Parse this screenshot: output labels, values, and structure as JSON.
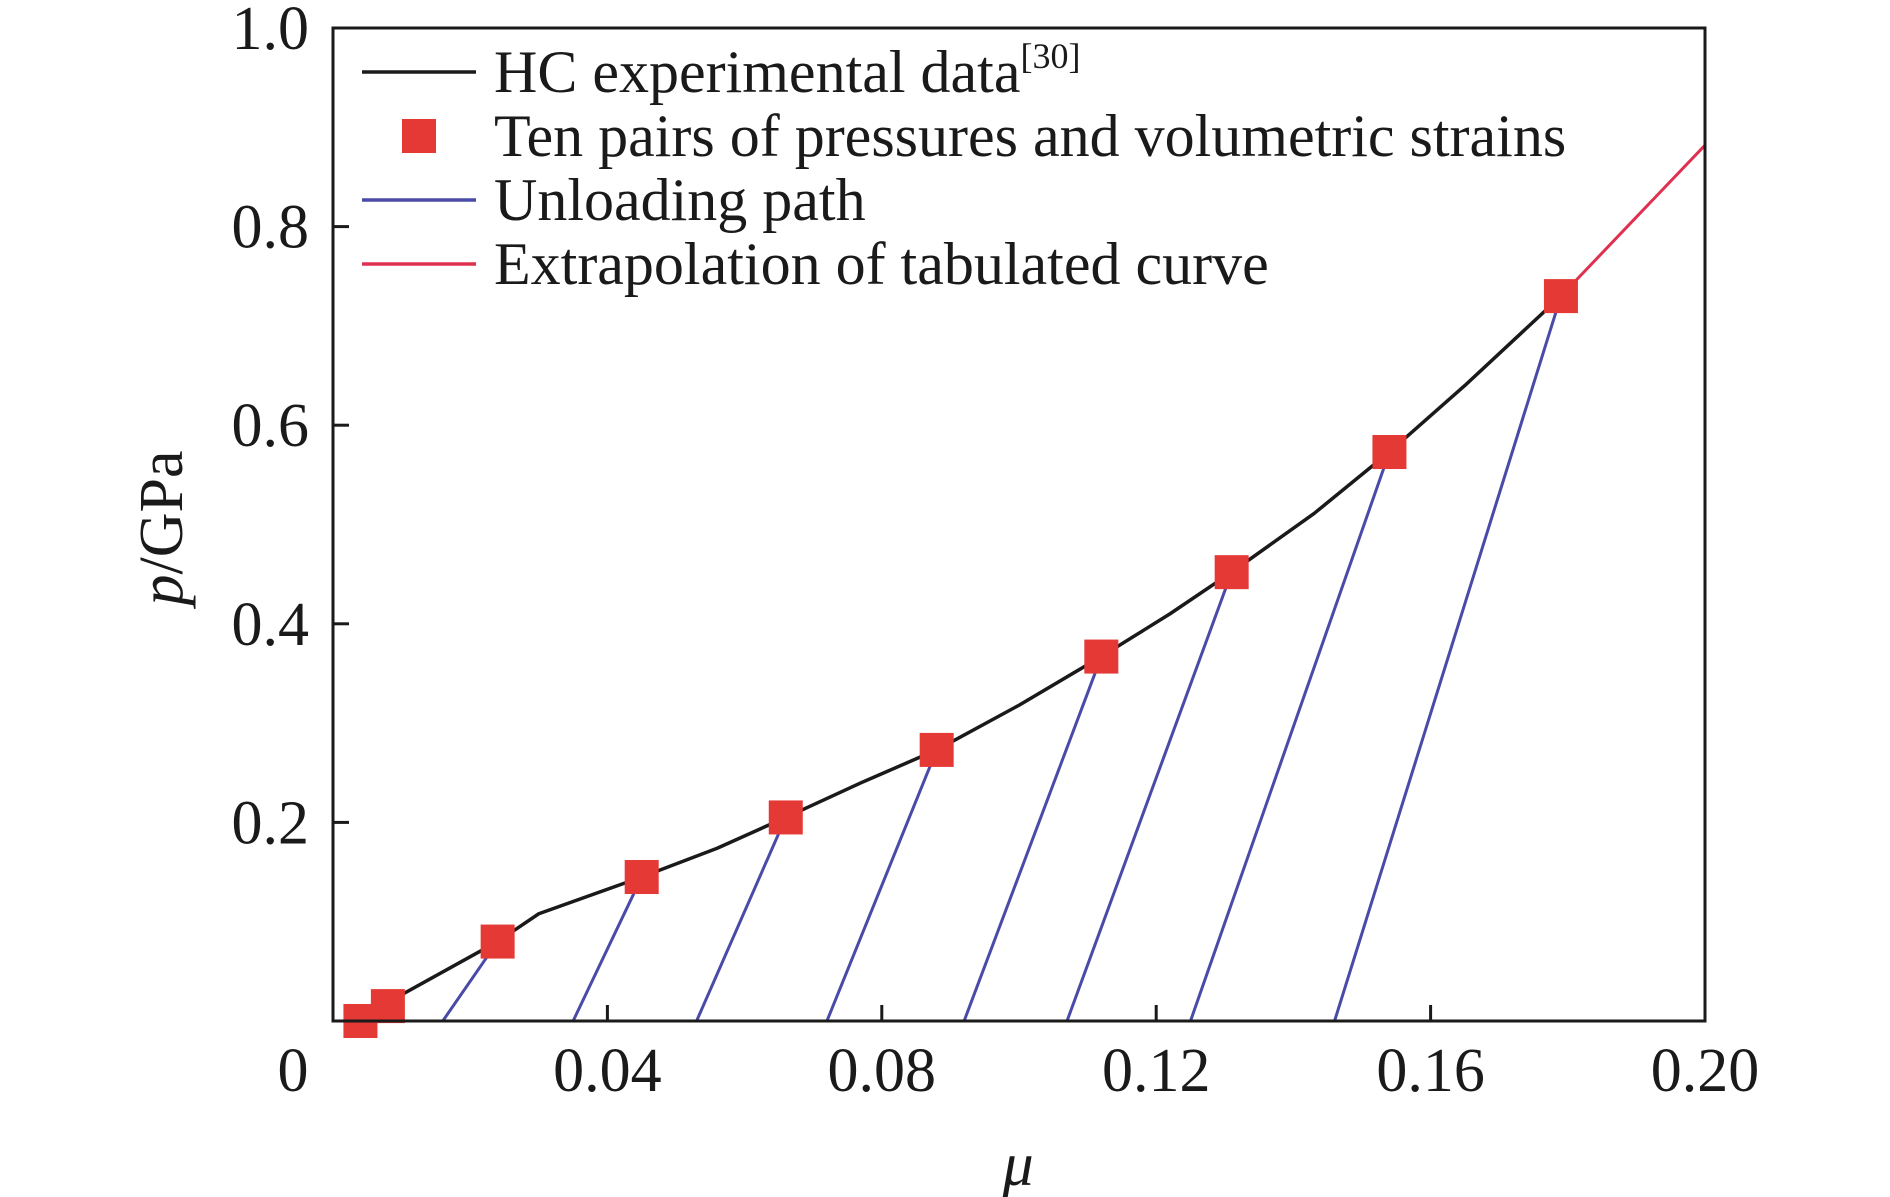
{
  "chart_data": {
    "type": "line",
    "xlabel": "μ",
    "ylabel_italic": "p",
    "ylabel_unit": "/GPa",
    "xlim": [
      0,
      0.2
    ],
    "ylim": [
      0,
      1.0
    ],
    "x_ticks": [
      0,
      0.04,
      0.08,
      0.12,
      0.16,
      0.2
    ],
    "x_tick_labels": [
      "0",
      "0.04",
      "0.08",
      "0.12",
      "0.16",
      "0.20"
    ],
    "y_ticks": [
      0.2,
      0.4,
      0.6,
      0.8,
      1.0
    ],
    "y_tick_labels": [
      "0.2",
      "0.4",
      "0.6",
      "0.8",
      "1.0"
    ],
    "grid": false,
    "legend_position": "top-left",
    "legend": [
      {
        "key": "hc",
        "label": "HC experimental data",
        "sup": "[30]",
        "color": "#1a1a1a",
        "marker": "line"
      },
      {
        "key": "pairs",
        "label": "Ten pairs of pressures and volumetric strains",
        "sup": "",
        "color": "#e53935",
        "marker": "square"
      },
      {
        "key": "unload",
        "label": "Unloading path",
        "sup": "",
        "color": "#4a4aa8",
        "marker": "line"
      },
      {
        "key": "extrap",
        "label": "Extrapolation of tabulated curve",
        "sup": "",
        "color": "#e03050",
        "marker": "line"
      }
    ],
    "series": [
      {
        "key": "hc",
        "name": "HC experimental data",
        "color": "#1a1a1a",
        "x": [
          0.007,
          0.024,
          0.03,
          0.045,
          0.056,
          0.066,
          0.077,
          0.088,
          0.1,
          0.112,
          0.122,
          0.131,
          0.143,
          0.154,
          0.165,
          0.172,
          0.179
        ],
        "y": [
          0.015,
          0.08,
          0.108,
          0.145,
          0.174,
          0.205,
          0.24,
          0.273,
          0.318,
          0.367,
          0.41,
          0.452,
          0.511,
          0.573,
          0.64,
          0.685,
          0.73
        ]
      },
      {
        "key": "pairs",
        "name": "Ten pairs of pressures and volumetric strains",
        "color": "#e53935",
        "x": [
          0.004,
          0.008,
          0.024,
          0.045,
          0.066,
          0.088,
          0.112,
          0.131,
          0.154,
          0.179
        ],
        "y": [
          0.0,
          0.015,
          0.08,
          0.145,
          0.205,
          0.273,
          0.367,
          0.452,
          0.573,
          0.73
        ]
      },
      {
        "key": "unload",
        "name": "Unloading path",
        "color": "#4a4aa8",
        "segments": [
          {
            "x0": 0.016,
            "x1": 0.024,
            "y1": 0.08
          },
          {
            "x0": 0.035,
            "x1": 0.045,
            "y1": 0.145
          },
          {
            "x0": 0.053,
            "x1": 0.066,
            "y1": 0.205
          },
          {
            "x0": 0.072,
            "x1": 0.088,
            "y1": 0.273
          },
          {
            "x0": 0.092,
            "x1": 0.112,
            "y1": 0.367
          },
          {
            "x0": 0.107,
            "x1": 0.131,
            "y1": 0.452
          },
          {
            "x0": 0.125,
            "x1": 0.154,
            "y1": 0.573
          },
          {
            "x0": 0.146,
            "x1": 0.179,
            "y1": 0.73
          }
        ]
      },
      {
        "key": "extrap",
        "name": "Extrapolation of tabulated curve",
        "color": "#e03050",
        "x": [
          0.179,
          0.2
        ],
        "y": [
          0.73,
          0.882
        ]
      }
    ]
  }
}
